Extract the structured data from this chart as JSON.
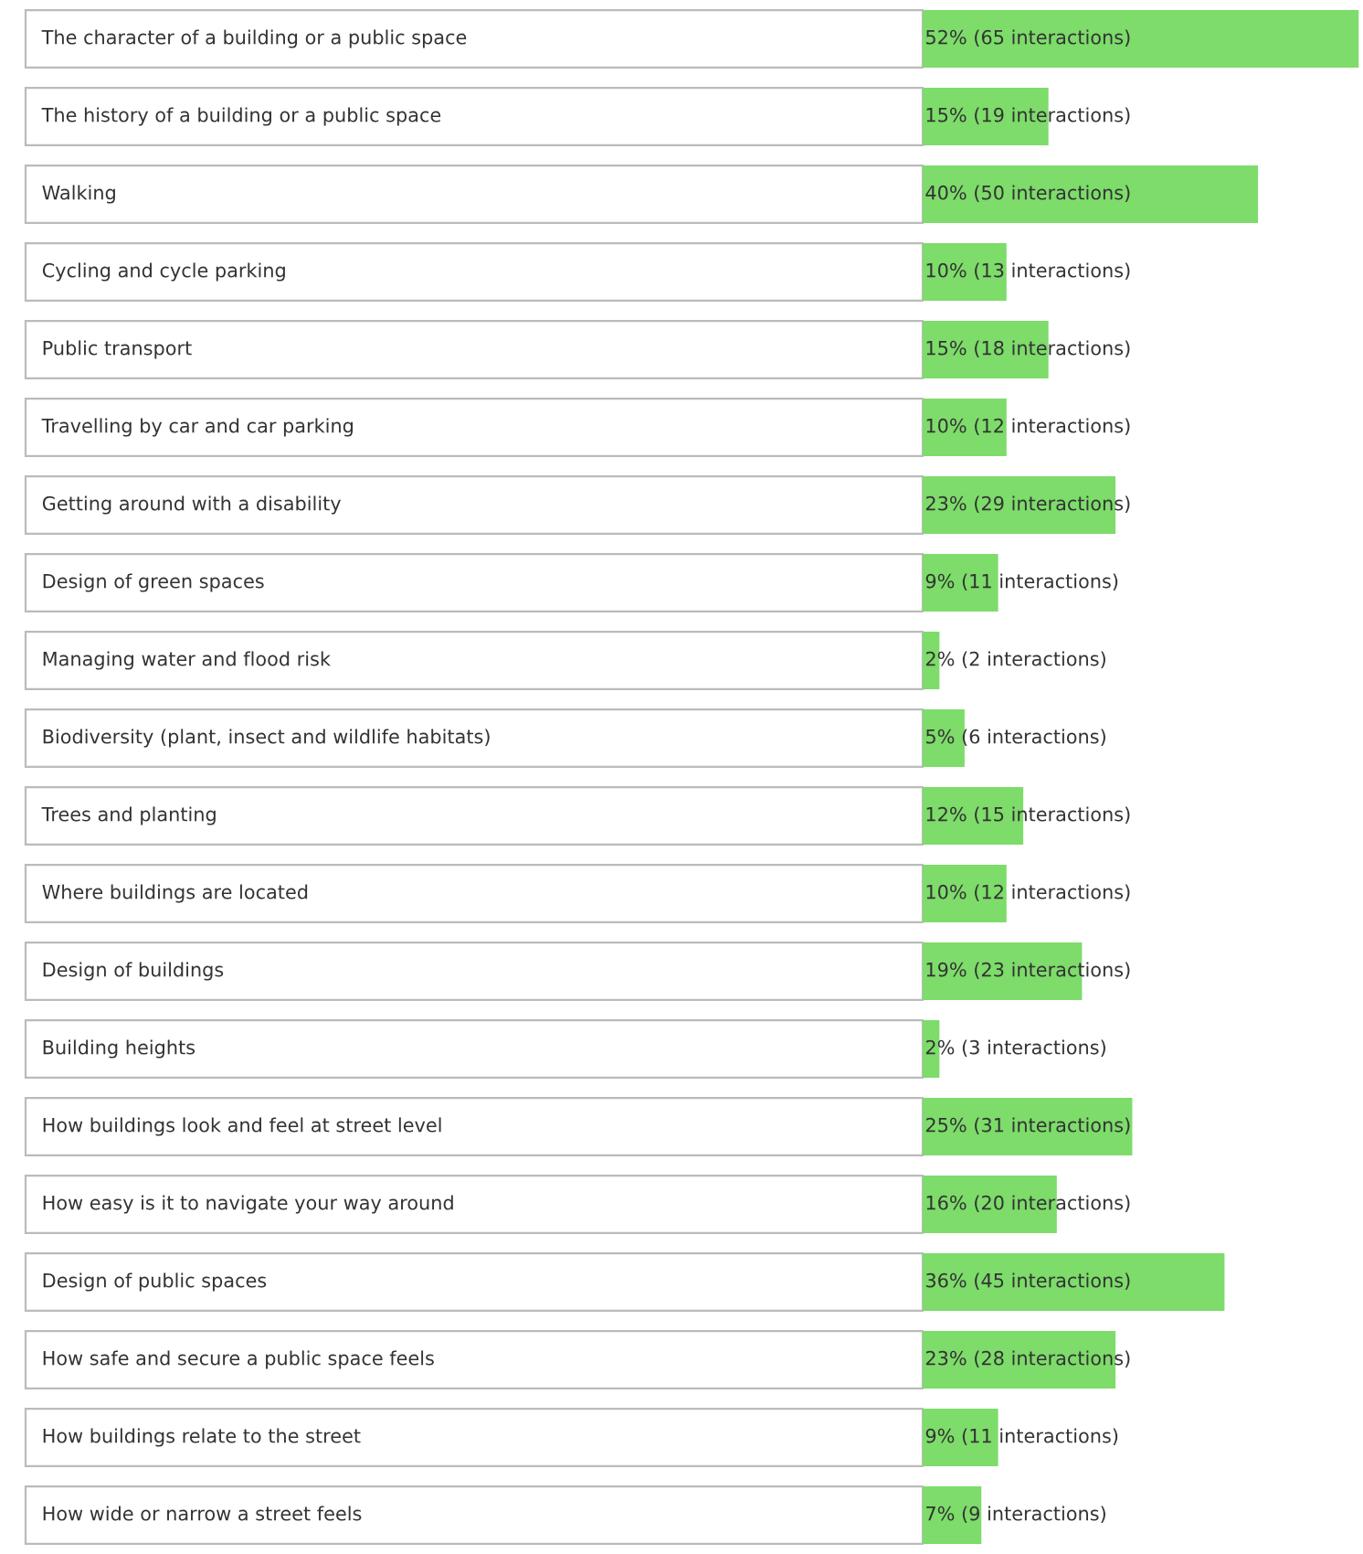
{
  "chart_data": {
    "type": "bar",
    "orientation": "horizontal",
    "color": "#7ddc6a",
    "legend": false,
    "tick_labels": false,
    "categories": [
      "The character of a building or a public space",
      "The history of a building or a public space",
      "Walking",
      "Cycling and cycle parking",
      "Public transport",
      "Travelling by car and car parking",
      "Getting around with a disability",
      "Design of green spaces",
      "Managing water and flood risk",
      "Biodiversity (plant, insect and wildlife habitats)",
      "Trees and planting",
      "Where buildings are located",
      "Design of buildings",
      "Building heights",
      "How buildings look and feel at street level",
      "How easy is it to navigate your way around",
      "Design of public spaces",
      "How safe and secure a public space feels",
      "How buildings relate to the street",
      "How wide or narrow a street feels"
    ],
    "values": [
      52,
      15,
      40,
      10,
      15,
      10,
      23,
      9,
      2,
      5,
      12,
      10,
      19,
      2,
      25,
      16,
      36,
      23,
      9,
      7
    ],
    "value_labels": [
      "52% (65 interactions)",
      "15% (19 interactions)",
      "40% (50 interactions)",
      "10% (13 interactions)",
      "15% (18 interactions)",
      "10% (12 interactions)",
      "23% (29 interactions)",
      "9% (11 interactions)",
      "2% (2 interactions)",
      "5% (6 interactions)",
      "12% (15 interactions)",
      "10% (12 interactions)",
      "19% (23 interactions)",
      "2% (3 interactions)",
      "25% (31 interactions)",
      "16% (20 interactions)",
      "36% (45 interactions)",
      "23% (28 interactions)",
      "9% (11 interactions)",
      "7% (9 interactions)"
    ]
  }
}
